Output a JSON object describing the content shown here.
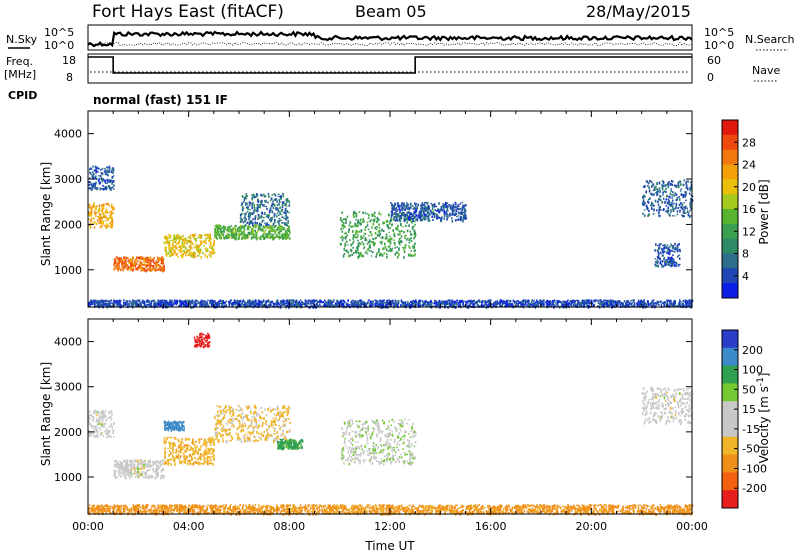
{
  "header": {
    "station": "Fort Hays East (fitACF)",
    "beam": "Beam 05",
    "date": "28/May/2015"
  },
  "strips": {
    "nsky_label": "N.Sky",
    "nsky_ticks": [
      "10^5",
      "10^0"
    ],
    "nsearch_label": "N.Search",
    "nsearch_ticks": [
      "10^5",
      "10^0"
    ],
    "freq_label": "Freq.",
    "freq_unit": "[MHz]",
    "freq_ticks": [
      "18",
      "8"
    ],
    "nave_label": "Nave",
    "nave_ticks": [
      "60",
      "0"
    ],
    "cpid_label": "CPID",
    "cpid_value": "normal (fast) 151 IF"
  },
  "chart_data": [
    {
      "type": "heatmap",
      "name_panel": "power",
      "ylabel": "Slant Range [km]",
      "xlabel": "",
      "yticks": [
        1000,
        2000,
        3000,
        4000
      ],
      "ylim": [
        180,
        4500
      ],
      "xlim_hours": [
        0,
        24
      ],
      "colorbar": {
        "label": "Power [dB]",
        "ticks": [
          4,
          8,
          12,
          16,
          20,
          24,
          28
        ],
        "range": [
          0,
          32
        ],
        "colors": [
          "#0a1ee6",
          "#1e46b4",
          "#2e6e8c",
          "#2e8a64",
          "#3aa050",
          "#58b430",
          "#a4c81c",
          "#e8c00a",
          "#f4a00a",
          "#f2780e",
          "#ee4a0e",
          "#e21a0e"
        ]
      },
      "echo_regions": [
        {
          "t": [
            0.0,
            1.0
          ],
          "r": [
            1950,
            2500
          ],
          "level": 22
        },
        {
          "t": [
            0.0,
            1.0
          ],
          "r": [
            2800,
            3300
          ],
          "level": 5
        },
        {
          "t": [
            1.0,
            3.0
          ],
          "r": [
            1000,
            1300
          ],
          "level": 26
        },
        {
          "t": [
            3.0,
            5.0
          ],
          "r": [
            1300,
            1800
          ],
          "level": 20
        },
        {
          "t": [
            5.0,
            8.0
          ],
          "r": [
            1700,
            2000
          ],
          "level": 14
        },
        {
          "t": [
            6.0,
            8.0
          ],
          "r": [
            2000,
            2700
          ],
          "level": 7
        },
        {
          "t": [
            10.0,
            13.0
          ],
          "r": [
            1300,
            2300
          ],
          "level": 12
        },
        {
          "t": [
            12.0,
            15.0
          ],
          "r": [
            2100,
            2500
          ],
          "level": 5
        },
        {
          "t": [
            22.0,
            24.0
          ],
          "r": [
            2200,
            3000
          ],
          "level": 6
        },
        {
          "t": [
            22.5,
            23.5
          ],
          "r": [
            1100,
            1600
          ],
          "level": 5
        },
        {
          "t": [
            0.0,
            24.0
          ],
          "r": [
            200,
            350
          ],
          "level": 4
        }
      ]
    },
    {
      "type": "heatmap",
      "name_panel": "velocity",
      "ylabel": "Slant Range [km]",
      "xlabel": "Time UT",
      "yticks": [
        1000,
        2000,
        3000,
        4000
      ],
      "ylim": [
        180,
        4500
      ],
      "xticks": [
        "00:00",
        "04:00",
        "08:00",
        "12:00",
        "16:00",
        "20:00",
        "00:00"
      ],
      "xtick_hours": [
        0,
        4,
        8,
        12,
        16,
        20,
        24
      ],
      "xlim_hours": [
        0,
        24
      ],
      "colorbar": {
        "label": "Velocity [m s",
        "label_sup": "-1",
        "label_end": "]",
        "ticks": [
          200,
          100,
          50,
          15,
          -15,
          -50,
          -100,
          -200
        ],
        "colors": [
          "#2a3cc8",
          "#3c8ac8",
          "#2ea050",
          "#74c832",
          "#c8c8c8",
          "#c8c8c8",
          "#f0b428",
          "#f09018",
          "#f26010",
          "#e81e1e"
        ]
      },
      "echo_regions": [
        {
          "t": [
            0.0,
            1.0
          ],
          "r": [
            1900,
            2500
          ],
          "level": 0
        },
        {
          "t": [
            1.0,
            3.0
          ],
          "r": [
            1000,
            1400
          ],
          "level": 0
        },
        {
          "t": [
            3.0,
            3.8
          ],
          "r": [
            2050,
            2250
          ],
          "level": 180
        },
        {
          "t": [
            3.0,
            5.0
          ],
          "r": [
            1300,
            1900
          ],
          "level": -40
        },
        {
          "t": [
            5.0,
            8.0
          ],
          "r": [
            1800,
            2600
          ],
          "level": -20
        },
        {
          "t": [
            7.5,
            8.5
          ],
          "r": [
            1650,
            1850
          ],
          "level": 60
        },
        {
          "t": [
            4.2,
            4.8
          ],
          "r": [
            3900,
            4200
          ],
          "level": -220
        },
        {
          "t": [
            10.0,
            13.0
          ],
          "r": [
            1300,
            2300
          ],
          "level": 10
        },
        {
          "t": [
            22.0,
            24.0
          ],
          "r": [
            2200,
            3000
          ],
          "level": 0
        },
        {
          "t": [
            0.0,
            24.0
          ],
          "r": [
            200,
            400
          ],
          "level": -60
        }
      ]
    }
  ]
}
